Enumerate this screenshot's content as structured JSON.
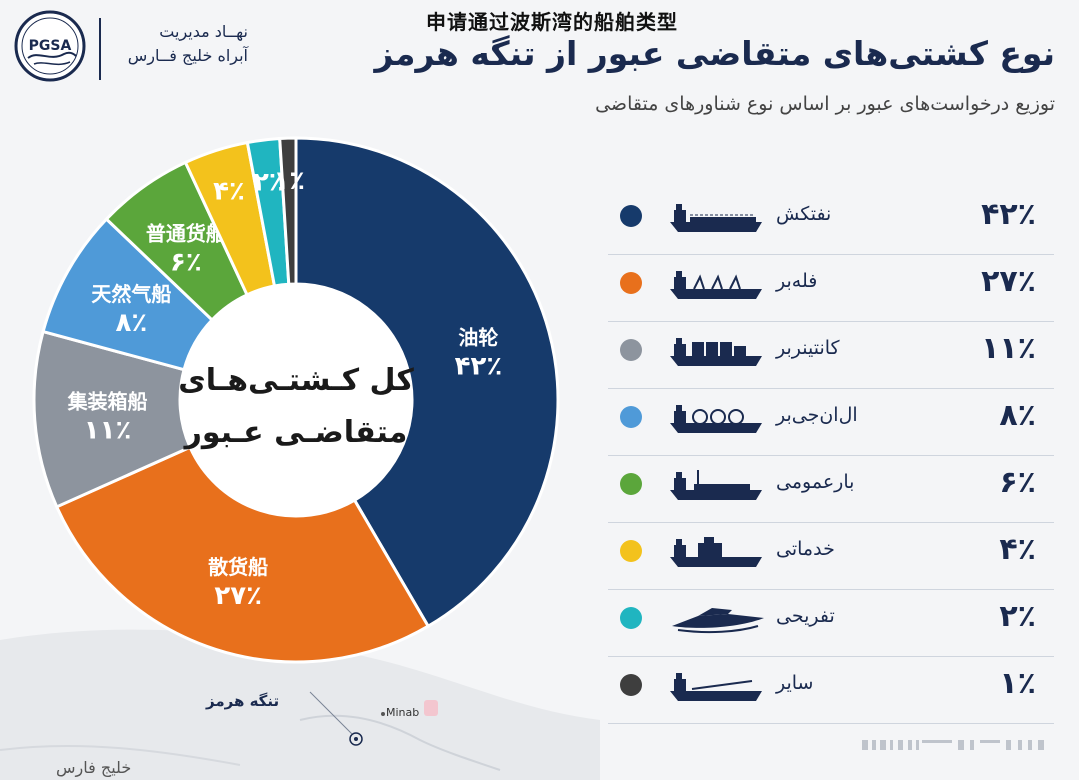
{
  "header": {
    "logo_text": "PGSA",
    "org_line1": "نهــاد مدیریت",
    "org_line2": "آبراه خلیج فــارس",
    "zh_title": "申请通过波斯湾的船舶类型",
    "title": "نوع کشتی‌های متقاضی عبور از تنگه هرمز",
    "subtitle": "توزیع درخواست‌های عبور بر اساس نوع شناورهای متقاضی"
  },
  "chart_data": {
    "type": "pie",
    "center_label_line1": "کل کـشتـی‌هـای",
    "center_label_line2": "متقاضـی عـبور",
    "slices": [
      {
        "zh": "油轮",
        "value": 42,
        "pct_label": "۴۲٪",
        "fa": "نفتکش",
        "color": "#163a6b"
      },
      {
        "zh": "散货船",
        "value": 27,
        "pct_label": "۲۷٪",
        "fa": "فله‌بر",
        "color": "#e8701c"
      },
      {
        "zh": "集装箱船",
        "value": 11,
        "pct_label": "۱۱٪",
        "fa": "کانتینربر",
        "color": "#8d949e"
      },
      {
        "zh": "天然气船",
        "value": 8,
        "pct_label": "۸٪",
        "fa": "ال‌ان‌جی‌بر",
        "color": "#4f9ad8"
      },
      {
        "zh": "普通货船",
        "value": 6,
        "pct_label": "۶٪",
        "fa": "بارعمومی",
        "color": "#5ba63b"
      },
      {
        "zh": "",
        "value": 4,
        "pct_label": "۴٪",
        "fa": "خدماتی",
        "color": "#f3c21c"
      },
      {
        "zh": "",
        "value": 2,
        "pct_label": "۲٪",
        "fa": "تفریحی",
        "color": "#20b5c0"
      },
      {
        "zh": "",
        "value": 1,
        "pct_label": "۱٪",
        "fa": "سایر",
        "color": "#3e3e3e"
      }
    ]
  },
  "legend": [
    {
      "name": "نفتکش",
      "pct": "۴۲٪",
      "color": "#163a6b",
      "icon": "tanker-ship-icon"
    },
    {
      "name": "فله‌بر",
      "pct": "۲۷٪",
      "color": "#e8701c",
      "icon": "bulk-carrier-icon"
    },
    {
      "name": "کانتینربر",
      "pct": "۱۱٪",
      "color": "#8d949e",
      "icon": "container-ship-icon"
    },
    {
      "name": "ال‌ان‌جی‌بر",
      "pct": "۸٪",
      "color": "#4f9ad8",
      "icon": "lng-carrier-icon"
    },
    {
      "name": "بارعمومی",
      "pct": "۶٪",
      "color": "#5ba63b",
      "icon": "general-cargo-ship-icon"
    },
    {
      "name": "خدماتی",
      "pct": "۴٪",
      "color": "#f3c21c",
      "icon": "service-vessel-icon"
    },
    {
      "name": "تفریحی",
      "pct": "۲٪",
      "color": "#20b5c0",
      "icon": "yacht-icon"
    },
    {
      "name": "سایر",
      "pct": "۱٪",
      "color": "#3e3e3e",
      "icon": "other-ship-icon"
    }
  ],
  "map": {
    "strait_label": "تنگه هرمز",
    "city_label": "Minab",
    "gulf_label": "خلیج فارس"
  }
}
